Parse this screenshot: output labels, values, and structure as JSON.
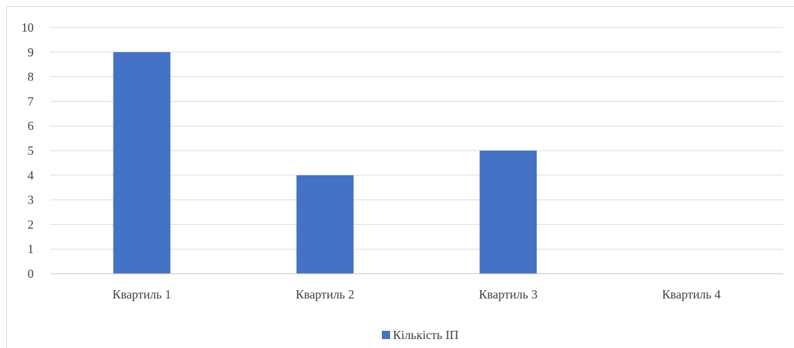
{
  "chart_data": {
    "type": "bar",
    "categories": [
      "Квартиль 1",
      "Квартиль 2",
      "Квартиль 3",
      "Квартиль 4"
    ],
    "series": [
      {
        "name": "Кількість ІП",
        "values": [
          9,
          4,
          5,
          0
        ],
        "color": "#4472c4"
      }
    ],
    "title": "",
    "xlabel": "",
    "ylabel": "",
    "ylim": [
      0,
      10
    ],
    "yticks": [
      0,
      1,
      2,
      3,
      4,
      5,
      6,
      7,
      8,
      9,
      10
    ],
    "grid": true,
    "legend": "bottom"
  }
}
